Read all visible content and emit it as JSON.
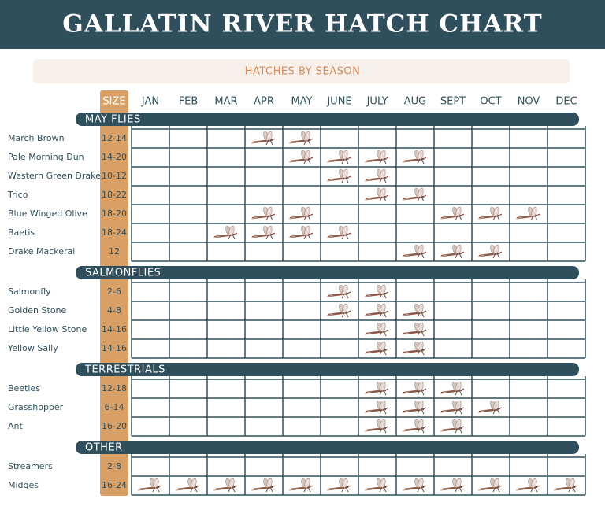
{
  "header": {
    "title": "GALLATIN RIVER HATCH CHART",
    "subtitle": "HATCHES BY SEASON"
  },
  "table": {
    "size_header": "SIZE",
    "months": [
      "JAN",
      "FEB",
      "MAR",
      "APR",
      "MAY",
      "JUNE",
      "JULY",
      "AUG",
      "SEPT",
      "OCT",
      "NOV",
      "DEC"
    ],
    "groups": [
      {
        "name": "MAY FLIES",
        "rows": [
          {
            "name": "March Brown",
            "size": "12-14",
            "hatch": [
              false,
              false,
              false,
              true,
              true,
              false,
              false,
              false,
              false,
              false,
              false,
              false
            ]
          },
          {
            "name": "Pale Morning Dun",
            "size": "14-20",
            "hatch": [
              false,
              false,
              false,
              false,
              true,
              true,
              true,
              true,
              false,
              false,
              false,
              false
            ]
          },
          {
            "name": "Western Green Drake",
            "size": "10-12",
            "hatch": [
              false,
              false,
              false,
              false,
              false,
              true,
              true,
              false,
              false,
              false,
              false,
              false
            ]
          },
          {
            "name": "Trico",
            "size": "18-22",
            "hatch": [
              false,
              false,
              false,
              false,
              false,
              false,
              true,
              true,
              false,
              false,
              false,
              false
            ]
          },
          {
            "name": "Blue Winged Olive",
            "size": "18-20",
            "hatch": [
              false,
              false,
              false,
              true,
              true,
              false,
              false,
              false,
              true,
              true,
              true,
              false
            ]
          },
          {
            "name": "Baetis",
            "size": "18-24",
            "hatch": [
              false,
              false,
              true,
              true,
              true,
              true,
              false,
              false,
              false,
              false,
              false,
              false
            ]
          },
          {
            "name": "Drake Mackeral",
            "size": "12",
            "hatch": [
              false,
              false,
              false,
              false,
              false,
              false,
              false,
              true,
              true,
              true,
              false,
              false
            ]
          }
        ]
      },
      {
        "name": "SALMONFLIES",
        "rows": [
          {
            "name": "Salmonfly",
            "size": "2-6",
            "hatch": [
              false,
              false,
              false,
              false,
              false,
              true,
              true,
              false,
              false,
              false,
              false,
              false
            ]
          },
          {
            "name": "Golden Stone",
            "size": "4-8",
            "hatch": [
              false,
              false,
              false,
              false,
              false,
              true,
              true,
              true,
              false,
              false,
              false,
              false
            ]
          },
          {
            "name": "Little Yellow Stone",
            "size": "14-16",
            "hatch": [
              false,
              false,
              false,
              false,
              false,
              false,
              true,
              true,
              false,
              false,
              false,
              false
            ]
          },
          {
            "name": "Yellow Sally",
            "size": "14-16",
            "hatch": [
              false,
              false,
              false,
              false,
              false,
              false,
              true,
              true,
              false,
              false,
              false,
              false
            ]
          }
        ]
      },
      {
        "name": "TERRESTRIALS",
        "rows": [
          {
            "name": "Beetles",
            "size": "12-18",
            "hatch": [
              false,
              false,
              false,
              false,
              false,
              false,
              true,
              true,
              true,
              false,
              false,
              false
            ]
          },
          {
            "name": "Grasshopper",
            "size": "6-14",
            "hatch": [
              false,
              false,
              false,
              false,
              false,
              false,
              true,
              true,
              true,
              true,
              false,
              false
            ]
          },
          {
            "name": "Ant",
            "size": "16-20",
            "hatch": [
              false,
              false,
              false,
              false,
              false,
              false,
              true,
              true,
              true,
              false,
              false,
              false
            ]
          }
        ]
      },
      {
        "name": "OTHER",
        "rows": [
          {
            "name": "Streamers",
            "size": "2-8",
            "hatch": [
              false,
              false,
              false,
              false,
              false,
              false,
              false,
              false,
              false,
              false,
              false,
              false
            ]
          },
          {
            "name": "Midges",
            "size": "16-24",
            "hatch": [
              true,
              true,
              true,
              true,
              true,
              true,
              true,
              true,
              true,
              true,
              true,
              true
            ]
          }
        ]
      }
    ]
  }
}
